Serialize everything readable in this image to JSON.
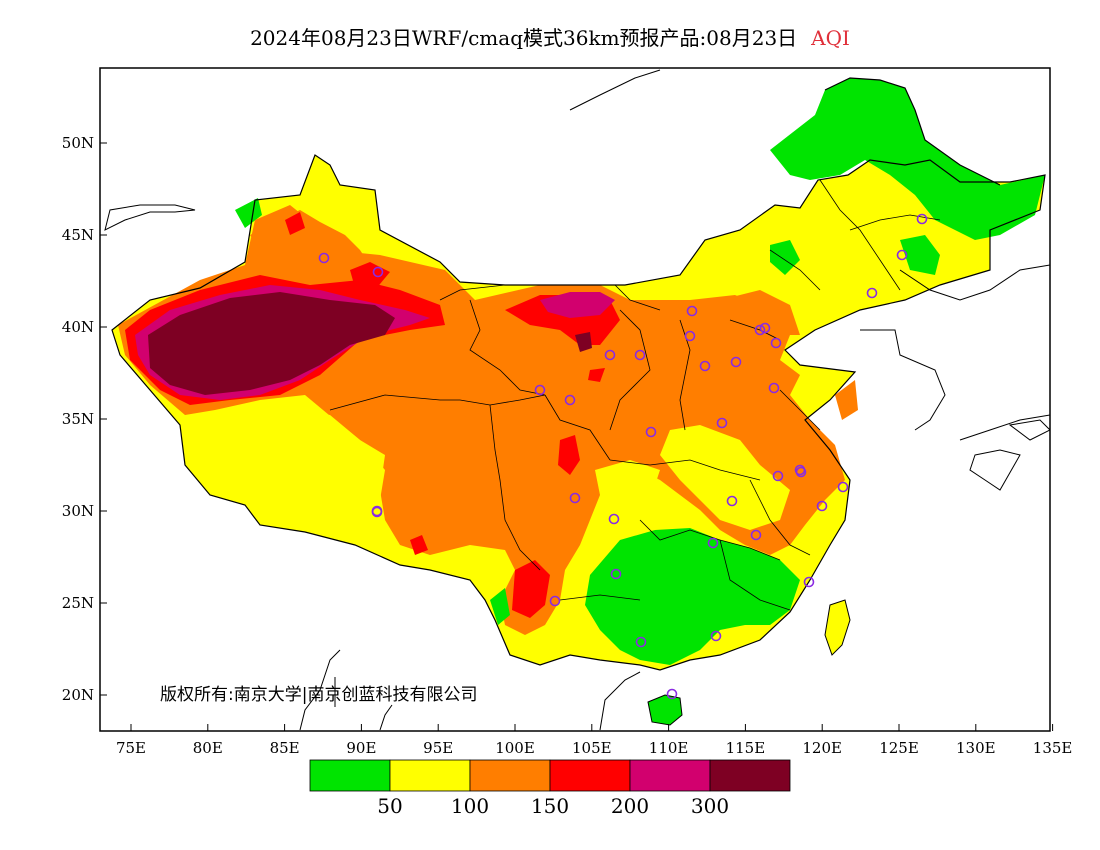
{
  "title": {
    "text": "2024年08月23日WRF/cmaq模式36km预报产品:08月23日",
    "variable": "AQI"
  },
  "axes": {
    "x_ticks": [
      "75E",
      "80E",
      "85E",
      "90E",
      "95E",
      "100E",
      "105E",
      "110E",
      "115E",
      "120E",
      "125E",
      "130E",
      "135E"
    ],
    "y_ticks": [
      "50N",
      "45N",
      "40N",
      "35N",
      "30N",
      "25N",
      "20N"
    ]
  },
  "copyright": "版权所有:南京大学|南京创蓝科技有限公司",
  "legend": {
    "colors": [
      "#00e400",
      "#ffff00",
      "#ff7e00",
      "#ff0000",
      "#d2006e",
      "#7e0023"
    ],
    "labels": [
      "50",
      "100",
      "150",
      "200",
      "300"
    ]
  },
  "stations": {
    "marker_color": "#8a2be2",
    "count": 37
  }
}
